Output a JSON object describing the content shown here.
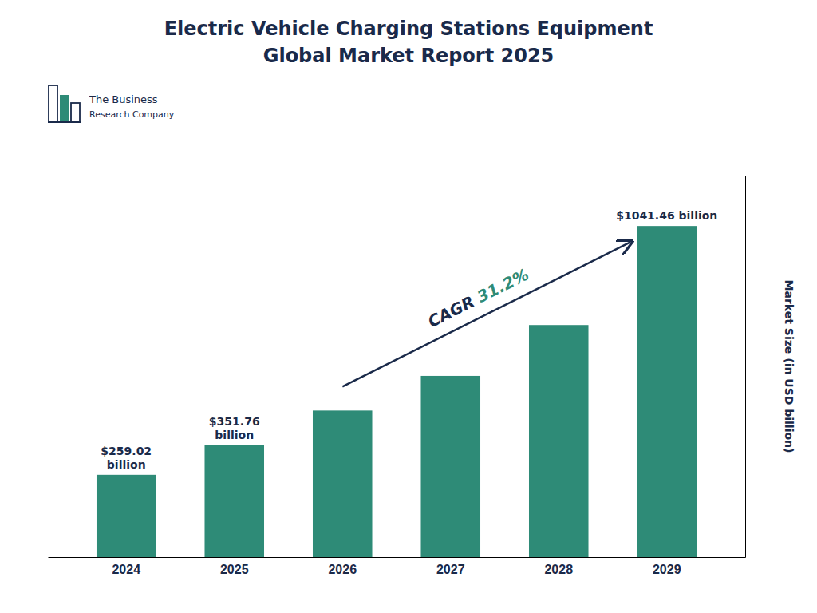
{
  "chart_data": {
    "type": "bar",
    "title": "Electric Vehicle Charging Stations Equipment",
    "subtitle": "Global Market Report 2025",
    "categories": [
      "2024",
      "2025",
      "2026",
      "2027",
      "2028",
      "2029"
    ],
    "values": [
      259.02,
      351.76,
      461.0,
      570.0,
      730.0,
      1041.46
    ],
    "value_labels": [
      "$259.02\nbillion",
      "$351.76\nbillion",
      null,
      null,
      null,
      "$1041.46 billion"
    ],
    "color": "#2e8b77",
    "y_label": "Market Size (in USD billion)",
    "ylim": [
      0,
      1200
    ],
    "tick_labels": "x",
    "grid": false,
    "annotations": [
      "CAGR ",
      "31.2%",
      "The Business",
      "Research Company"
    ]
  }
}
